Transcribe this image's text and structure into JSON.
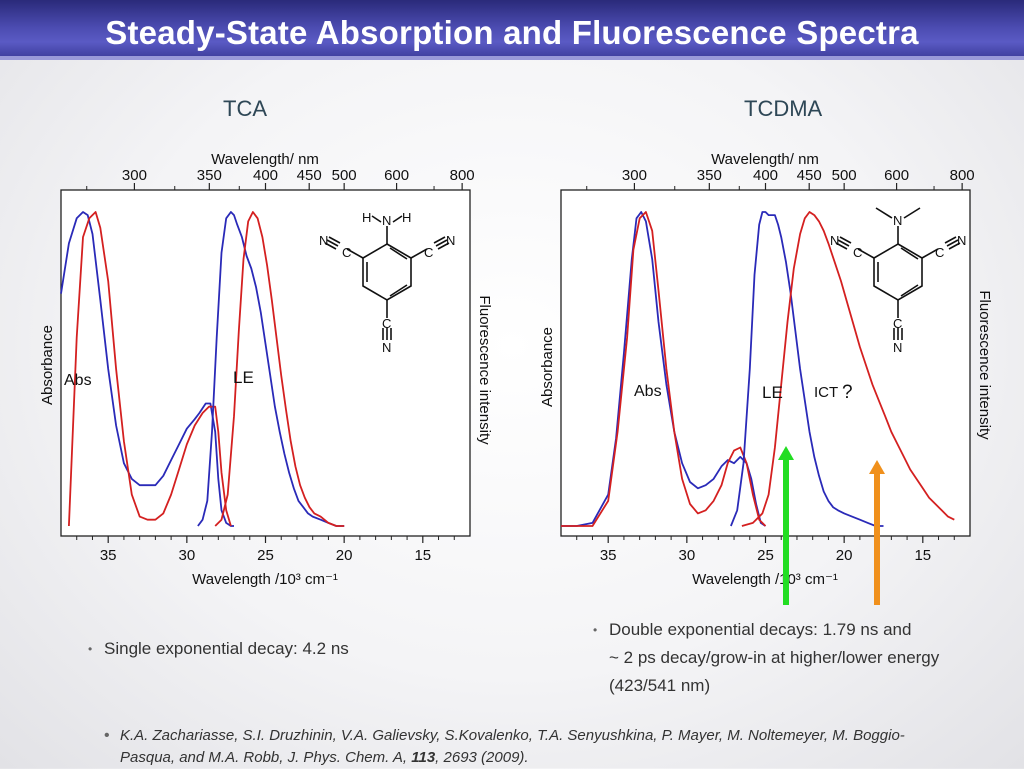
{
  "title": "Steady-State Absorption and Fluorescence Spectra",
  "panels": [
    {
      "label": "TCA",
      "top_axis_label": "Wavelength/ nm",
      "bottom_axis_label": "Wavelength /10³ cm⁻¹",
      "left_axis_label": "Absorbance",
      "right_axis_label": "Fluorescence intensity",
      "annotations": {
        "abs": "Abs",
        "le": "LE"
      },
      "top_ticks": [
        "300",
        "350",
        "400",
        "450",
        "500",
        "600",
        "800"
      ],
      "bottom_ticks": [
        "35",
        "30",
        "25",
        "20",
        "15"
      ]
    },
    {
      "label": "TCDMA",
      "top_axis_label": "Wavelength/ nm",
      "bottom_axis_label": "Wavelength /10³ cm⁻¹",
      "left_axis_label": "Absorbance",
      "right_axis_label": "Fluorescence intensity",
      "annotations": {
        "abs": "Abs",
        "le": "LE",
        "ict": "ICT",
        "q": "?"
      },
      "top_ticks": [
        "300",
        "350",
        "400",
        "450",
        "500",
        "600",
        "800"
      ],
      "bottom_ticks": [
        "35",
        "30",
        "25",
        "20",
        "15"
      ]
    }
  ],
  "molecule_atoms": {
    "n": "N",
    "h": "H",
    "c": "C"
  },
  "bullets": {
    "tca": "Single exponential decay: 4.2 ns",
    "tcdma_1": "Double exponential decays: 1.79 ns and",
    "tcdma_2": "~ 2 ps decay/grow-in at higher/lower energy",
    "tcdma_3": "(423/541 nm)"
  },
  "reference": {
    "authors": "K.A. Zachariasse, S.I. Druzhinin, V.A. Galievsky, S.Kovalenko, T.A. Senyushkina, P. Mayer, M. Noltemeyer, M. Boggio-Pasqua, and M.A. Robb, J. Phys. Chem. A, ",
    "volume": "113",
    "pages": ", 2693 (2009)."
  },
  "colors": {
    "blue": "#2a2ab8",
    "red": "#d42020",
    "green": "#22dd22",
    "orange": "#f0901c",
    "title_bg": "#4040a8"
  },
  "chart_data": [
    {
      "type": "line",
      "panel": "TCA",
      "xlabel": "Wavelength /10³ cm⁻¹",
      "xlim": [
        38,
        12
      ],
      "xticks": [
        35,
        30,
        25,
        20,
        15
      ],
      "ylim": [
        0,
        1
      ],
      "series": [
        {
          "name": "Abs (blue)",
          "color": "#2a2ab8",
          "x": [
            38,
            37.5,
            37,
            36.6,
            36.3,
            36,
            35.5,
            35,
            34.5,
            34,
            33.5,
            33,
            32.5,
            32,
            31.5,
            31,
            30.5,
            30,
            29.5,
            29.2,
            28.8,
            28.5,
            28.2,
            28,
            27.8,
            27.5,
            27.2,
            27
          ],
          "y": [
            0.74,
            0.9,
            0.98,
            1.0,
            0.99,
            0.93,
            0.72,
            0.5,
            0.32,
            0.2,
            0.15,
            0.13,
            0.13,
            0.13,
            0.16,
            0.21,
            0.26,
            0.31,
            0.34,
            0.36,
            0.39,
            0.39,
            0.3,
            0.15,
            0.05,
            0.01,
            0.0,
            0.0
          ]
        },
        {
          "name": "Abs (red)",
          "color": "#d42020",
          "x": [
            37.5,
            37,
            36.6,
            36.2,
            35.8,
            35.5,
            35,
            34.5,
            34,
            33.5,
            33,
            32.5,
            32,
            31.5,
            31,
            30.5,
            30,
            29.5,
            29,
            28.6,
            28.2,
            28,
            27.8,
            27.5,
            27.2
          ],
          "y": [
            0.0,
            0.6,
            0.92,
            0.98,
            1.0,
            0.95,
            0.78,
            0.5,
            0.27,
            0.1,
            0.03,
            0.02,
            0.02,
            0.04,
            0.1,
            0.18,
            0.26,
            0.32,
            0.36,
            0.38,
            0.38,
            0.3,
            0.17,
            0.05,
            0.0
          ]
        },
        {
          "name": "LE (blue)",
          "color": "#2a2ab8",
          "x": [
            29.3,
            29,
            28.7,
            28.4,
            28.1,
            27.8,
            27.5,
            27.2,
            27,
            26.8,
            26.5,
            26.2,
            25.9,
            25.6,
            25.3,
            25,
            24.7,
            24.4,
            24.1,
            23.8,
            23.5,
            23.2,
            22.9,
            22.6,
            22.3,
            22,
            21.5,
            21,
            20.5,
            20
          ],
          "y": [
            0.0,
            0.02,
            0.08,
            0.3,
            0.6,
            0.87,
            0.98,
            1.0,
            0.99,
            0.96,
            0.92,
            0.86,
            0.82,
            0.76,
            0.68,
            0.58,
            0.48,
            0.38,
            0.3,
            0.23,
            0.17,
            0.12,
            0.08,
            0.06,
            0.04,
            0.03,
            0.02,
            0.01,
            0.0,
            0.0
          ]
        },
        {
          "name": "LE (red)",
          "color": "#d42020",
          "x": [
            28.2,
            27.8,
            27.4,
            27,
            26.7,
            26.4,
            26.1,
            25.8,
            25.5,
            25.2,
            24.9,
            24.6,
            24.3,
            24,
            23.7,
            23.4,
            23.1,
            22.8,
            22.5,
            22.2,
            21.9,
            21.5,
            21,
            20.5,
            20
          ],
          "y": [
            0.0,
            0.02,
            0.1,
            0.35,
            0.62,
            0.85,
            0.97,
            1.0,
            0.98,
            0.92,
            0.83,
            0.72,
            0.6,
            0.48,
            0.37,
            0.27,
            0.19,
            0.13,
            0.09,
            0.06,
            0.04,
            0.03,
            0.01,
            0.0,
            0.0
          ]
        }
      ]
    },
    {
      "type": "line",
      "panel": "TCDMA",
      "xlabel": "Wavelength /10³ cm⁻¹",
      "xlim": [
        38,
        12
      ],
      "xticks": [
        35,
        30,
        25,
        20,
        15
      ],
      "ylim": [
        0,
        1
      ],
      "series": [
        {
          "name": "Abs (blue)",
          "color": "#2a2ab8",
          "x": [
            38,
            37,
            36,
            35,
            34.5,
            34,
            33.5,
            33.2,
            32.9,
            32.6,
            32.2,
            31.8,
            31.3,
            30.8,
            30.3,
            29.8,
            29.3,
            28.8,
            28.3,
            27.8,
            27.4,
            27,
            26.6,
            26.2,
            25.9,
            25.6,
            25.3,
            25
          ],
          "y": [
            0.0,
            0.0,
            0.01,
            0.1,
            0.28,
            0.55,
            0.85,
            0.98,
            1.0,
            0.97,
            0.85,
            0.65,
            0.45,
            0.3,
            0.2,
            0.14,
            0.12,
            0.13,
            0.15,
            0.19,
            0.21,
            0.2,
            0.22,
            0.2,
            0.15,
            0.07,
            0.01,
            0.0
          ]
        },
        {
          "name": "Abs (red)",
          "color": "#d42020",
          "x": [
            38,
            37,
            36,
            35,
            34.4,
            33.8,
            33.4,
            33,
            32.6,
            32.2,
            31.8,
            31.3,
            30.8,
            30.3,
            29.8,
            29.3,
            28.8,
            28.3,
            27.8,
            27.4,
            27,
            26.6,
            26.2,
            25.8,
            25.4,
            25
          ],
          "y": [
            0.0,
            0.0,
            0.0,
            0.08,
            0.3,
            0.6,
            0.88,
            0.98,
            1.0,
            0.94,
            0.75,
            0.5,
            0.3,
            0.15,
            0.07,
            0.04,
            0.05,
            0.08,
            0.13,
            0.2,
            0.24,
            0.25,
            0.2,
            0.1,
            0.02,
            0.0
          ]
        },
        {
          "name": "LE (blue)",
          "color": "#2a2ab8",
          "x": [
            27.2,
            26.8,
            26.4,
            26,
            25.7,
            25.4,
            25.2,
            25,
            24.8,
            24.6,
            24.4,
            24.2,
            24,
            23.7,
            23.4,
            23.1,
            22.8,
            22.5,
            22.2,
            21.9,
            21.6,
            21.3,
            21,
            20.7,
            20.4,
            20,
            19.5,
            19,
            18.5,
            18,
            17.5
          ],
          "y": [
            0.0,
            0.05,
            0.2,
            0.5,
            0.8,
            0.96,
            1.0,
            1.0,
            0.99,
            0.99,
            0.99,
            0.96,
            0.92,
            0.84,
            0.74,
            0.62,
            0.5,
            0.4,
            0.3,
            0.22,
            0.16,
            0.11,
            0.08,
            0.06,
            0.05,
            0.04,
            0.03,
            0.02,
            0.01,
            0.0,
            0.0
          ]
        },
        {
          "name": "ICT (red)",
          "color": "#d42020",
          "x": [
            26.5,
            25.8,
            25.2,
            24.8,
            24.4,
            24,
            23.6,
            23.2,
            22.8,
            22.5,
            22.2,
            21.9,
            21.6,
            21.3,
            21,
            20.6,
            20.2,
            19.8,
            19.4,
            19,
            18.6,
            18.2,
            17.8,
            17.4,
            17,
            16.6,
            16.2,
            15.8,
            15.4,
            15,
            14.6,
            14.2,
            13.8,
            13.4,
            13
          ],
          "y": [
            0.0,
            0.01,
            0.04,
            0.1,
            0.25,
            0.45,
            0.65,
            0.82,
            0.93,
            0.98,
            1.0,
            0.99,
            0.97,
            0.94,
            0.9,
            0.84,
            0.78,
            0.71,
            0.64,
            0.57,
            0.51,
            0.45,
            0.4,
            0.35,
            0.3,
            0.26,
            0.22,
            0.18,
            0.15,
            0.12,
            0.09,
            0.07,
            0.05,
            0.03,
            0.02
          ]
        }
      ]
    }
  ]
}
